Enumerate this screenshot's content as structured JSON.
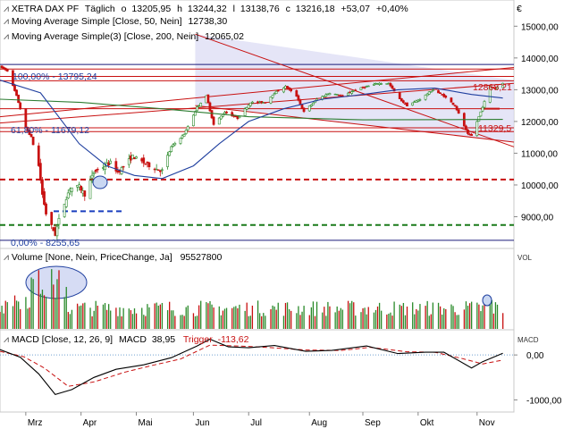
{
  "header": {
    "instrument": "XETRA DAX PF",
    "period": "Täglich",
    "ohlc_o_label": "o",
    "ohlc_o": "13205,95",
    "ohlc_h_label": "h",
    "ohlc_h": "13244,32",
    "ohlc_l_label": "l",
    "ohlc_l": "13138,76",
    "ohlc_c_label": "c",
    "ohlc_c": "13216,18",
    "change": "+53,07",
    "change_pct": "+0,40%",
    "ma1_label": "Moving Average Simple [Close, 50, Nein]",
    "ma1_value": "12738,30",
    "ma2_label": "Moving Average Simple(3) [Close, 200, Nein]",
    "ma2_value": "12065,02",
    "icon": "euro-icon"
  },
  "volume_panel": {
    "label": "Volume [None, Nein, PriceChange, Ja]",
    "value": "95527800",
    "axis_label": "VOL"
  },
  "macd_panel": {
    "label": "MACD [Close, 12, 26, 9]",
    "macd_label": "MACD",
    "macd_value": "38,95",
    "trigger_label": "Trigger",
    "trigger_value": "-113,62",
    "axis_label": "MACD",
    "ticks": [
      "0,00",
      "-1000,00"
    ]
  },
  "annotations": {
    "fib_100": "100,00% - 13795,24",
    "fib_618": "61,80% - 11679,12",
    "fib_0": "0,00% - 8255,65",
    "right_upper": "12868,21",
    "right_lower": "11329,5"
  },
  "colors": {
    "up": "#2a8a2a",
    "down": "#c81010",
    "ma50": "#1f3f9f",
    "ma200": "#2e7d32",
    "macd": "#000000",
    "trigger": "#c81010",
    "channel_fill": "#dcdcf4"
  },
  "chart_data": [
    {
      "type": "line",
      "subtype": "candlestick",
      "title": "XETRA DAX PF",
      "x_ticks": [
        "Mrz",
        "Apr",
        "Mai",
        "Jun",
        "Jul",
        "Aug",
        "Sep",
        "Okt",
        "Nov"
      ],
      "y_ticks": [
        9000,
        10000,
        11000,
        12000,
        13000,
        14000,
        15000
      ],
      "y_tick_labels": [
        "9000,00",
        "10000,00",
        "11000,00",
        "12000,00",
        "13000,00",
        "14000,00",
        "15000,00"
      ],
      "ylim": [
        8000,
        15600
      ],
      "price_path": [
        [
          "2020-02-17",
          13720
        ],
        [
          "2020-02-21",
          13600
        ],
        [
          "2020-02-26",
          12800
        ],
        [
          "2020-03-02",
          11800
        ],
        [
          "2020-03-05",
          11500
        ],
        [
          "2020-03-09",
          10600
        ],
        [
          "2020-03-11",
          9700
        ],
        [
          "2020-03-13",
          9100
        ],
        [
          "2020-03-16",
          8700
        ],
        [
          "2020-03-18",
          8440
        ],
        [
          "2020-03-20",
          8900
        ],
        [
          "2020-03-24",
          9600
        ],
        [
          "2020-03-26",
          9900
        ],
        [
          "2020-03-31",
          9950
        ],
        [
          "2020-04-03",
          9700
        ],
        [
          "2020-04-08",
          10400
        ],
        [
          "2020-04-14",
          10600
        ],
        [
          "2020-04-17",
          10700
        ],
        [
          "2020-04-21",
          10400
        ],
        [
          "2020-04-29",
          10900
        ],
        [
          "2020-05-05",
          10700
        ],
        [
          "2020-05-12",
          10500
        ],
        [
          "2020-05-15",
          10450
        ],
        [
          "2020-05-20",
          11200
        ],
        [
          "2020-05-27",
          11600
        ],
        [
          "2020-06-03",
          12450
        ],
        [
          "2020-06-08",
          12800
        ],
        [
          "2020-06-12",
          11900
        ],
        [
          "2020-06-18",
          12300
        ],
        [
          "2020-06-25",
          12100
        ],
        [
          "2020-07-02",
          12600
        ],
        [
          "2020-07-10",
          12600
        ],
        [
          "2020-07-15",
          12900
        ],
        [
          "2020-07-21",
          13100
        ],
        [
          "2020-07-27",
          12800
        ],
        [
          "2020-07-31",
          12300
        ],
        [
          "2020-08-07",
          12700
        ],
        [
          "2020-08-14",
          12900
        ],
        [
          "2020-08-21",
          12800
        ],
        [
          "2020-08-28",
          13000
        ],
        [
          "2020-09-03",
          13100
        ],
        [
          "2020-09-09",
          13200
        ],
        [
          "2020-09-15",
          13200
        ],
        [
          "2020-09-21",
          12700
        ],
        [
          "2020-09-25",
          12500
        ],
        [
          "2020-10-02",
          12700
        ],
        [
          "2020-10-09",
          13000
        ],
        [
          "2020-10-15",
          12800
        ],
        [
          "2020-10-21",
          12500
        ],
        [
          "2020-10-28",
          11600
        ],
        [
          "2020-10-30",
          11550
        ],
        [
          "2020-11-04",
          12300
        ],
        [
          "2020-11-09",
          13100
        ],
        [
          "2020-11-12",
          13050
        ],
        [
          "2020-11-16",
          13216
        ]
      ],
      "series": [
        {
          "name": "Moving Average Simple [Close, 50, Nein]",
          "values": [
            [
              "2020-02-17",
              13300
            ],
            [
              "2020-03-10",
              12900
            ],
            [
              "2020-03-31",
              11300
            ],
            [
              "2020-04-15",
              10600
            ],
            [
              "2020-04-30",
              10300
            ],
            [
              "2020-05-15",
              10200
            ],
            [
              "2020-06-01",
              10600
            ],
            [
              "2020-06-15",
              11300
            ],
            [
              "2020-07-01",
              12000
            ],
            [
              "2020-07-20",
              12400
            ],
            [
              "2020-08-10",
              12700
            ],
            [
              "2020-09-01",
              12850
            ],
            [
              "2020-09-20",
              13000
            ],
            [
              "2020-10-10",
              13050
            ],
            [
              "2020-10-30",
              12850
            ],
            [
              "2020-11-16",
              12738
            ]
          ]
        },
        {
          "name": "Moving Average Simple(3) [Close, 200, Nein]",
          "values": [
            [
              "2020-02-17",
              12700
            ],
            [
              "2020-04-01",
              12600
            ],
            [
              "2020-05-15",
              12400
            ],
            [
              "2020-07-01",
              12150
            ],
            [
              "2020-09-01",
              12050
            ],
            [
              "2020-11-16",
              12065
            ]
          ]
        }
      ],
      "fibonacci": [
        {
          "label": "100,00%",
          "value": 13795.24
        },
        {
          "label": "61,80%",
          "value": 11679.12
        },
        {
          "label": "0,00%",
          "value": 8255.65
        }
      ],
      "horizontal_levels": [
        {
          "value": 13795,
          "style": "solid",
          "color": "#1a1a7a"
        },
        {
          "value": 13420,
          "style": "solid",
          "color": "#c81010"
        },
        {
          "value": 13280,
          "style": "solid",
          "color": "#c81010"
        },
        {
          "value": 12400,
          "style": "solid",
          "color": "#c81010"
        },
        {
          "value": 11800,
          "style": "solid",
          "color": "#c81010"
        },
        {
          "value": 11679,
          "style": "solid",
          "color": "#c81010"
        },
        {
          "value": 10170,
          "style": "dashed",
          "color": "#c81010"
        },
        {
          "value": 9170,
          "style": "dashed",
          "color": "#1a3fbf"
        },
        {
          "value": 8740,
          "style": "dashed",
          "color": "#1a7a1a"
        },
        {
          "value": 8255.65,
          "style": "solid",
          "color": "#1a1a7a"
        }
      ],
      "grid": false
    },
    {
      "type": "bar",
      "title": "Volume [None, Nein, PriceChange, Ja]",
      "last_value": 95527800
    },
    {
      "type": "line",
      "title": "MACD [Close, 12, 26, 9]",
      "y_ticks": [
        0,
        -1000
      ],
      "ylim": [
        -1250,
        500
      ],
      "series": [
        {
          "name": "MACD",
          "values": [
            [
              "2020-02-17",
              120
            ],
            [
              "2020-02-28",
              -50
            ],
            [
              "2020-03-09",
              -420
            ],
            [
              "2020-03-18",
              -880
            ],
            [
              "2020-03-27",
              -770
            ],
            [
              "2020-04-08",
              -500
            ],
            [
              "2020-04-20",
              -320
            ],
            [
              "2020-05-05",
              -220
            ],
            [
              "2020-05-20",
              -60
            ],
            [
              "2020-06-03",
              200
            ],
            [
              "2020-06-10",
              350
            ],
            [
              "2020-06-20",
              180
            ],
            [
              "2020-07-01",
              160
            ],
            [
              "2020-07-15",
              210
            ],
            [
              "2020-08-01",
              80
            ],
            [
              "2020-08-15",
              100
            ],
            [
              "2020-09-03",
              200
            ],
            [
              "2020-09-20",
              30
            ],
            [
              "2020-10-05",
              60
            ],
            [
              "2020-10-15",
              60
            ],
            [
              "2020-10-30",
              -290
            ],
            [
              "2020-11-05",
              -150
            ],
            [
              "2020-11-16",
              38.95
            ]
          ]
        },
        {
          "name": "Trigger",
          "values": [
            [
              "2020-02-17",
              80
            ],
            [
              "2020-03-01",
              -40
            ],
            [
              "2020-03-12",
              -290
            ],
            [
              "2020-03-25",
              -700
            ],
            [
              "2020-04-08",
              -600
            ],
            [
              "2020-04-25",
              -380
            ],
            [
              "2020-05-10",
              -230
            ],
            [
              "2020-05-25",
              -90
            ],
            [
              "2020-06-10",
              220
            ],
            [
              "2020-06-25",
              200
            ],
            [
              "2020-07-10",
              170
            ],
            [
              "2020-08-01",
              110
            ],
            [
              "2020-08-20",
              100
            ],
            [
              "2020-09-05",
              170
            ],
            [
              "2020-09-25",
              70
            ],
            [
              "2020-10-10",
              60
            ],
            [
              "2020-10-25",
              -80
            ],
            [
              "2020-11-05",
              -200
            ],
            [
              "2020-11-16",
              -113.62
            ]
          ]
        }
      ]
    }
  ]
}
